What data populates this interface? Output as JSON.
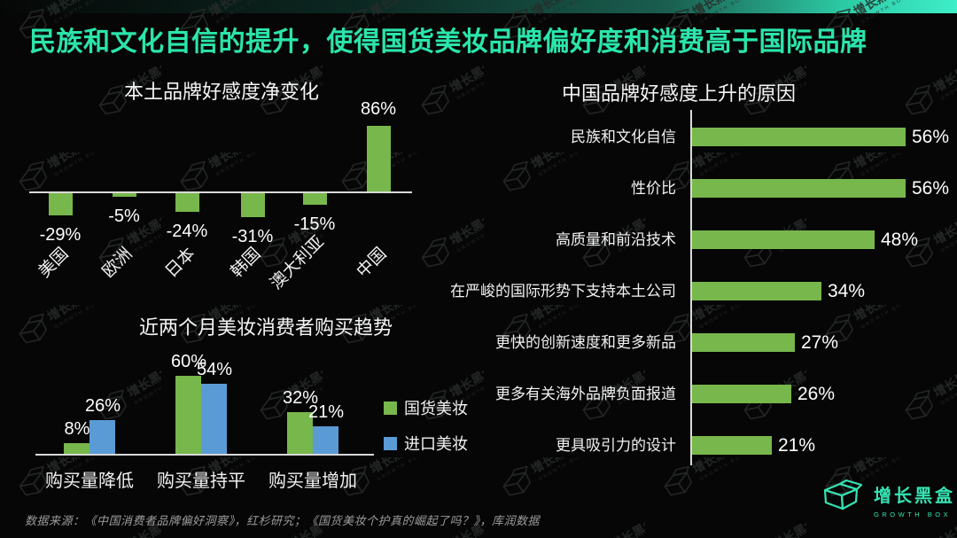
{
  "page": {
    "title": "民族和文化自信的提升，使得国货美妆品牌偏好度和消费高于国际品牌",
    "source_note": "数据来源：《中国消费者品牌偏好洞察》，红杉研究；《国货美妆个护真的崛起了吗？》，库润数据"
  },
  "logo": {
    "name_cn": "增长黑盒",
    "name_en": "GROWTH BOX"
  },
  "icons": {
    "logo_mark": "open-box-cube"
  },
  "colors": {
    "accent_teal": "#2BE5AB",
    "logo_teal": "#35E3B2",
    "bar_green": "#77B74C",
    "bar_blue": "#5B9BD5",
    "axis_gray": "#D9D9D9",
    "background": "#060606",
    "value_text": "#FFFFFF",
    "source_text": "#9C9C9C"
  },
  "chart_data": [
    {
      "type": "bar",
      "title": "本土品牌好感度净变化",
      "categories": [
        "美国",
        "欧洲",
        "日本",
        "韩国",
        "澳大利亚",
        "中国"
      ],
      "values": [
        -29,
        -5,
        -24,
        -31,
        -15,
        86
      ],
      "labels": [
        "-29%",
        "-5%",
        "-24%",
        "-31%",
        "-15%",
        "86%"
      ],
      "bar_color": "#77B74C",
      "xlabel": "",
      "ylabel": "",
      "ylim": [
        -40,
        100
      ],
      "grid": false
    },
    {
      "type": "bar",
      "title": "近两个月美妆消费者购买趋势",
      "categories": [
        "购买量降低",
        "购买量持平",
        "购买量增加"
      ],
      "series": [
        {
          "name": "国货美妆",
          "color": "#77B74C",
          "values": [
            8,
            60,
            32
          ],
          "labels": [
            "8%",
            "60%",
            "32%"
          ]
        },
        {
          "name": "进口美妆",
          "color": "#5B9BD5",
          "values": [
            26,
            54,
            21
          ],
          "labels": [
            "26%",
            "54%",
            "21%"
          ]
        }
      ],
      "legend_position": "right",
      "xlabel": "",
      "ylabel": "",
      "ylim": [
        0,
        70
      ],
      "grid": false
    },
    {
      "type": "bar",
      "orientation": "horizontal",
      "title": "中国品牌好感度上升的原因",
      "categories": [
        "民族和文化自信",
        "性价比",
        "高质量和前沿技术",
        "在严峻的国际形势下支持本土公司",
        "更快的创新速度和更多新品",
        "更多有关海外品牌负面报道",
        "更具吸引力的设计"
      ],
      "values": [
        56,
        56,
        48,
        34,
        27,
        26,
        21
      ],
      "labels": [
        "56%",
        "56%",
        "48%",
        "34%",
        "27%",
        "26%",
        "21%"
      ],
      "bar_color": "#77B74C",
      "xlabel": "",
      "ylabel": "",
      "xlim": [
        0,
        60
      ],
      "grid": false
    }
  ]
}
